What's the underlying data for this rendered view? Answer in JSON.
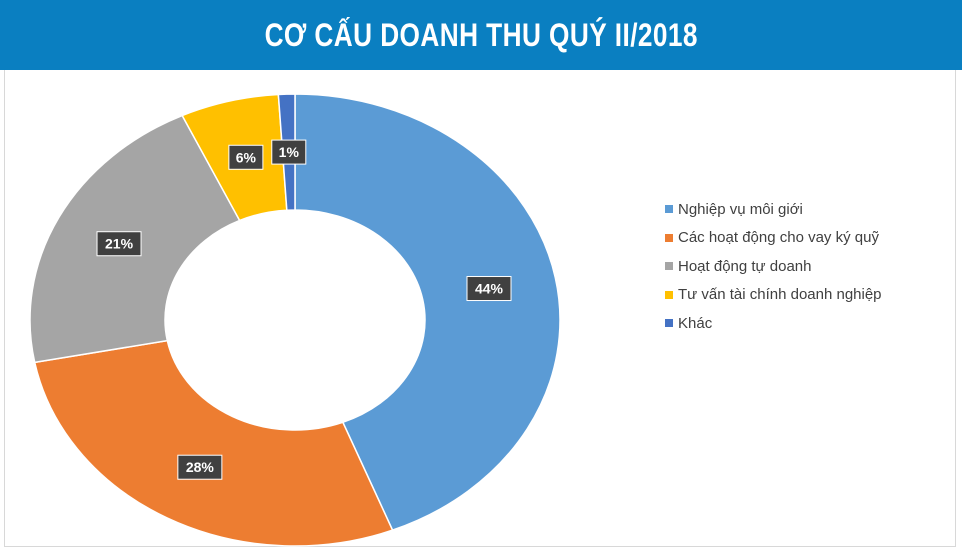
{
  "chart_data": {
    "type": "pie",
    "variant": "donut",
    "title": "CƠ CẤU DOANH THU QUÝ II/2018",
    "categories": [
      "Nghiệp vụ môi giới",
      "Các hoạt động cho vay ký quỹ",
      "Hoạt động tự doanh",
      "Tư vấn tài chính doanh nghiệp",
      "Khác"
    ],
    "values": [
      44,
      28,
      21,
      6,
      1
    ],
    "labels": [
      "44%",
      "28%",
      "21%",
      "6%",
      "1%"
    ],
    "colors": [
      "#5b9bd5",
      "#ed7d31",
      "#a5a5a5",
      "#ffc000",
      "#4472c4"
    ],
    "legend": "right"
  },
  "header_color": "#0a7fc1"
}
